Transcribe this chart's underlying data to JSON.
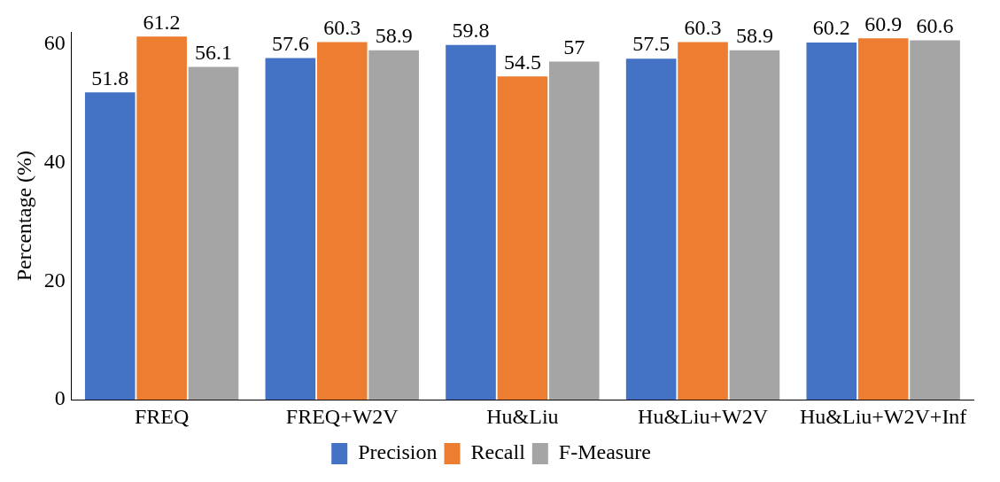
{
  "chart_data": {
    "type": "bar",
    "ylabel": "Percentage (%)",
    "categories": [
      "FREQ",
      "FREQ+W2V",
      "Hu&Liu",
      "Hu&Liu+W2V",
      "Hu&Liu+W2V+Inf"
    ],
    "series": [
      {
        "name": "Precision",
        "color": "#4472c4",
        "values": [
          51.8,
          57.6,
          59.8,
          57.5,
          60.2
        ]
      },
      {
        "name": "Recall",
        "color": "#ed7d31",
        "values": [
          61.2,
          60.3,
          54.5,
          60.3,
          60.9
        ]
      },
      {
        "name": "F-Measure",
        "color": "#a5a5a5",
        "values": [
          56.1,
          58.9,
          57,
          58.9,
          60.6
        ]
      }
    ],
    "ylim": [
      0,
      62
    ],
    "yticks": [
      0,
      20,
      40,
      60
    ],
    "grid": false,
    "legend": "bottom",
    "data_labels": true
  }
}
